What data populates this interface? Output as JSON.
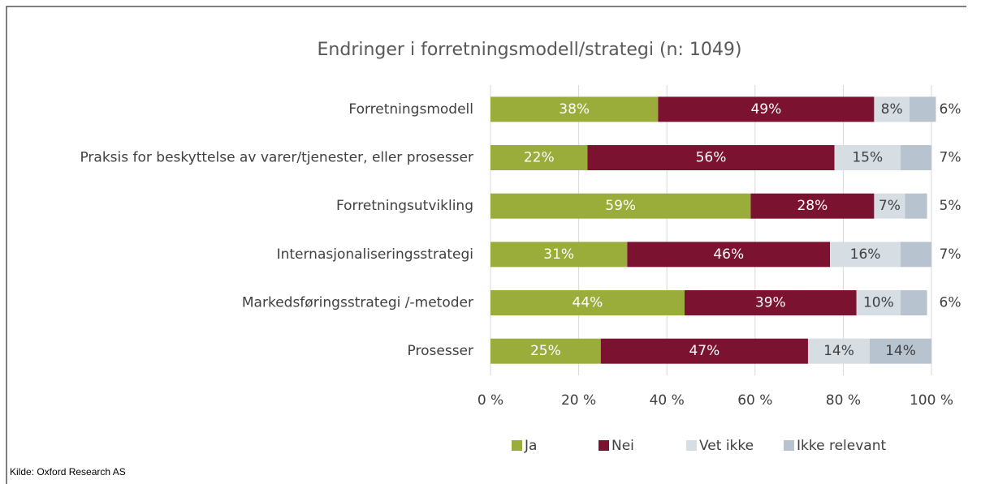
{
  "chart_data": {
    "type": "stacked-bar-horizontal",
    "title": "Endringer i forretningsmodell/strategi (n: 1049)",
    "categories": [
      "Forretningsmodell",
      "Praksis for beskyttelse av varer/tjenester, eller prosesser",
      "Forretningsutvikling",
      "Internasjonaliseringsstrategi",
      "Markedsføringsstrategi /-metoder",
      "Prosesser"
    ],
    "series": [
      {
        "name": "Ja",
        "color": "#9aad3a",
        "values": [
          38,
          22,
          59,
          31,
          44,
          25
        ],
        "value_labels": [
          "38%",
          "22%",
          "59%",
          "31%",
          "44%",
          "25%"
        ]
      },
      {
        "name": "Nei",
        "color": "#7b1230",
        "values": [
          49,
          56,
          28,
          46,
          39,
          47
        ],
        "value_labels": [
          "49%",
          "56%",
          "28%",
          "46%",
          "39%",
          "47%"
        ]
      },
      {
        "name": "Vet ikke",
        "color": "#d6dee4",
        "values": [
          8,
          15,
          7,
          16,
          10,
          14
        ],
        "value_labels": [
          "8%",
          "15%",
          "7%",
          "16%",
          "10%",
          "14%"
        ]
      },
      {
        "name": "Ikke relevant",
        "color": "#b8c3d0",
        "values": [
          6,
          7,
          5,
          7,
          6,
          14
        ],
        "value_labels": [
          "6%",
          "7%",
          "5%",
          "7%",
          "6%",
          "14%"
        ]
      }
    ],
    "xlim": [
      0,
      100
    ],
    "xticks": [
      {
        "value": 0,
        "label": "0 %"
      },
      {
        "value": 20,
        "label": "20 %"
      },
      {
        "value": 40,
        "label": "40 %"
      },
      {
        "value": 60,
        "label": "60 %"
      },
      {
        "value": 80,
        "label": "80 %"
      },
      {
        "value": 100,
        "label": "100 %"
      }
    ],
    "grid": true,
    "legend": "bottom",
    "source": "Kilde: Oxford Research AS"
  }
}
